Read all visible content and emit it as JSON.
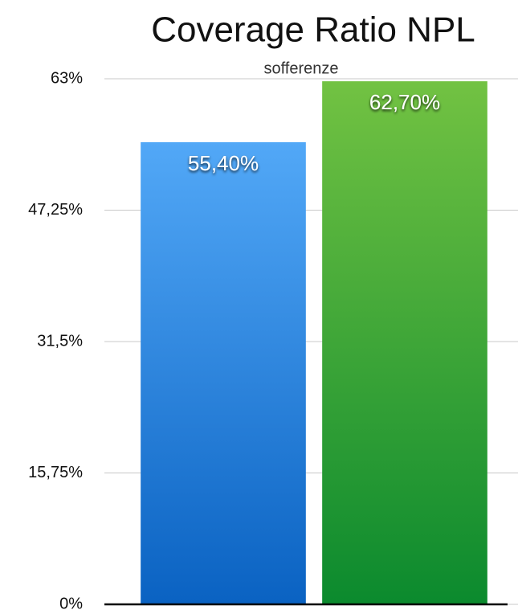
{
  "chart_data": {
    "type": "bar",
    "title": "Coverage Ratio NPL",
    "subtitle": "sofferenze",
    "categories": [
      null,
      null
    ],
    "values": [
      55.4,
      62.7
    ],
    "value_labels": [
      "55,40%",
      "62,70%"
    ],
    "colors": [
      [
        "#52a8f7",
        "#0a62c2"
      ],
      [
        "#72c242",
        "#0b8a2e"
      ]
    ],
    "ylim": [
      0,
      63
    ],
    "yticks": [
      {
        "value": 0,
        "label": "0%"
      },
      {
        "value": 15.75,
        "label": "15,75%"
      },
      {
        "value": 31.5,
        "label": "31,5%"
      },
      {
        "value": 47.25,
        "label": "47,25%"
      },
      {
        "value": 63,
        "label": "63%"
      }
    ],
    "grid": true
  }
}
